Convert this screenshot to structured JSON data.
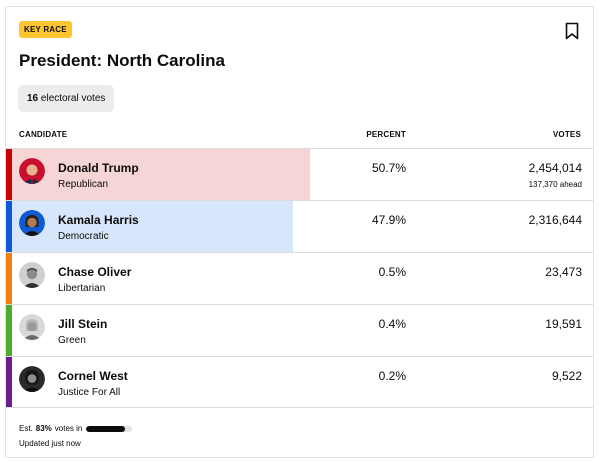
{
  "badge": "KEY RACE",
  "title": "President: North Carolina",
  "electoral": {
    "count": "16",
    "label": "electoral votes"
  },
  "columns": {
    "candidate": "CANDIDATE",
    "percent": "PERCENT",
    "votes": "VOTES"
  },
  "candidates": [
    {
      "name": "Donald Trump",
      "party": "Republican",
      "percent": "50.7%",
      "votes": "2,454,014",
      "ahead": "137,370 ahead",
      "color": "#cc0000",
      "fill": "#f5d5d6",
      "share": 0.507,
      "winner_fill": true
    },
    {
      "name": "Kamala Harris",
      "party": "Democratic",
      "percent": "47.9%",
      "votes": "2,316,644",
      "ahead": "",
      "color": "#0c5bd2",
      "fill": "#d7e6fa",
      "share": 0.479,
      "winner_fill": true
    },
    {
      "name": "Chase Oliver",
      "party": "Libertarian",
      "percent": "0.5%",
      "votes": "23,473",
      "ahead": "",
      "color": "#f27e0e",
      "fill": "",
      "share": 0.005,
      "winner_fill": false
    },
    {
      "name": "Jill Stein",
      "party": "Green",
      "percent": "0.4%",
      "votes": "19,591",
      "ahead": "",
      "color": "#4cab2a",
      "fill": "",
      "share": 0.004,
      "winner_fill": false
    },
    {
      "name": "Cornel West",
      "party": "Justice For All",
      "percent": "0.2%",
      "votes": "9,522",
      "ahead": "",
      "color": "#6b1d8f",
      "fill": "",
      "share": 0.002,
      "winner_fill": false
    }
  ],
  "footer": {
    "est_prefix": "Est.",
    "est_value": "83%",
    "est_suffix": "votes in",
    "progress": 0.83,
    "updated": "Updated just now"
  }
}
